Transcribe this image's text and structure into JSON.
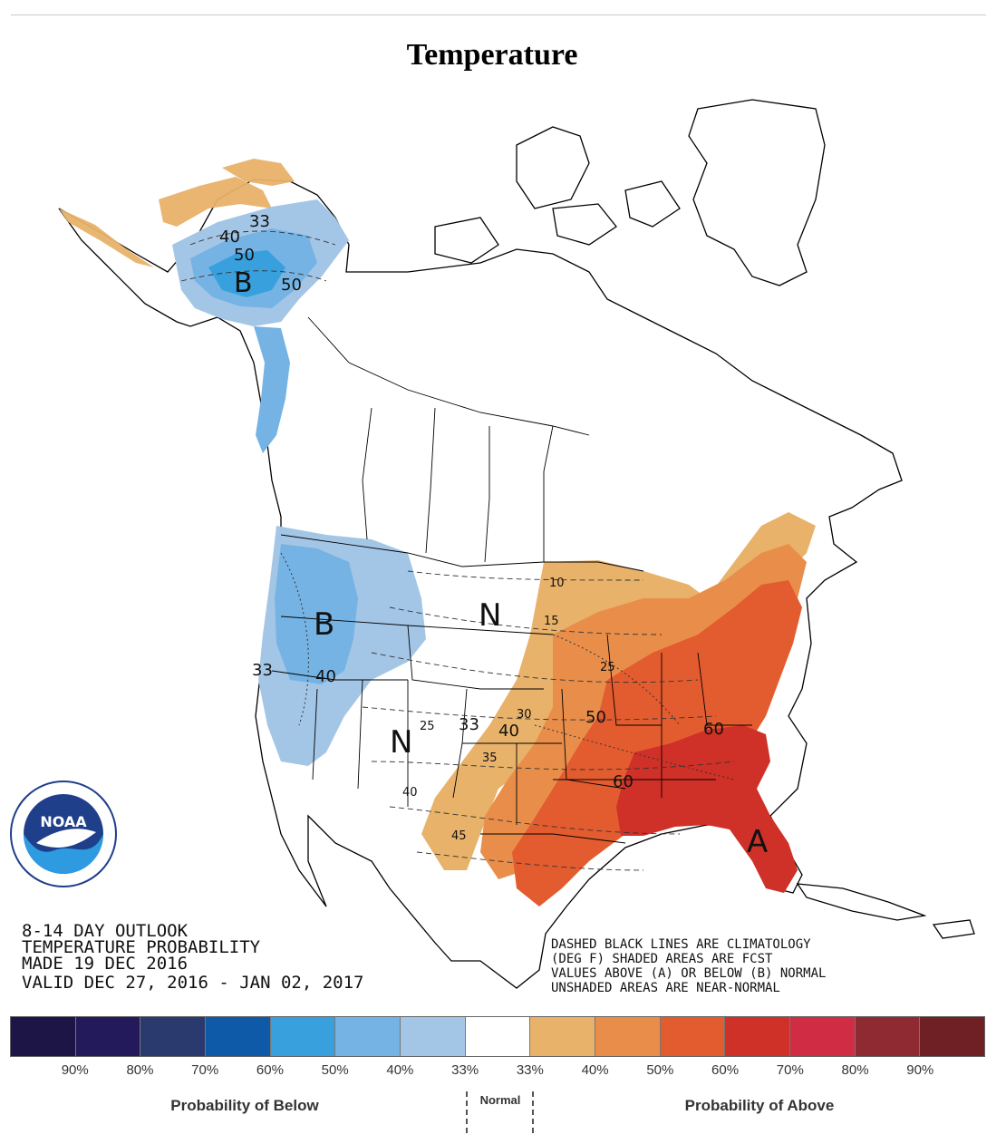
{
  "header": {
    "title": "Temperature"
  },
  "outlook": {
    "line1": "8-14 DAY OUTLOOK",
    "line2": "TEMPERATURE PROBABILITY",
    "line3": "MADE  19 DEC 2016",
    "line4": "VALID  DEC 27, 2016 - JAN 02, 2017"
  },
  "note": {
    "line1": "DASHED BLACK LINES ARE CLIMATOLOGY",
    "line2": "(DEG F) SHADED AREAS ARE FCST",
    "line3": "VALUES ABOVE (A) OR BELOW (B) NORMAL",
    "line4": "UNSHADED AREAS ARE NEAR-NORMAL"
  },
  "logo": {
    "name": "NOAA",
    "ring_text": "NATIONAL OCEANIC AND ATMOSPHERIC ADMINISTRATION · U.S. DEPARTMENT OF COMMERCE"
  },
  "map_labels": {
    "alaska_b": "B",
    "west_b": "B",
    "plains_n": "N",
    "south_n": "N",
    "southeast_a": "A",
    "alaska_33": "33",
    "alaska_40": "40",
    "alaska_50a": "50",
    "alaska_50b": "50",
    "west_33": "33",
    "west_40": "40",
    "central_33": "33",
    "central_40": "40",
    "central_50": "50",
    "east_60": "60",
    "south_60": "60",
    "clim_10": "10",
    "clim_15": "15",
    "clim_25a": "25",
    "clim_25b": "25",
    "clim_30": "30",
    "clim_35": "35",
    "clim_40": "40",
    "clim_45": "45"
  },
  "legend": {
    "colors": [
      "#1c1546",
      "#221a5a",
      "#2a3a6e",
      "#0e5aa8",
      "#38a0dd",
      "#75b3e4",
      "#a4c6e6",
      "#ffffff",
      "#e8b26a",
      "#e98e4a",
      "#e35c30",
      "#cf3027",
      "#d02c44",
      "#8f2a33",
      "#6e2024"
    ],
    "ticks": [
      "90%",
      "80%",
      "70%",
      "60%",
      "50%",
      "40%",
      "33%",
      "33%",
      "40%",
      "50%",
      "60%",
      "70%",
      "80%",
      "90%"
    ],
    "below_label": "Probability of Below",
    "normal_label": "Normal",
    "above_label": "Probability of Above"
  }
}
